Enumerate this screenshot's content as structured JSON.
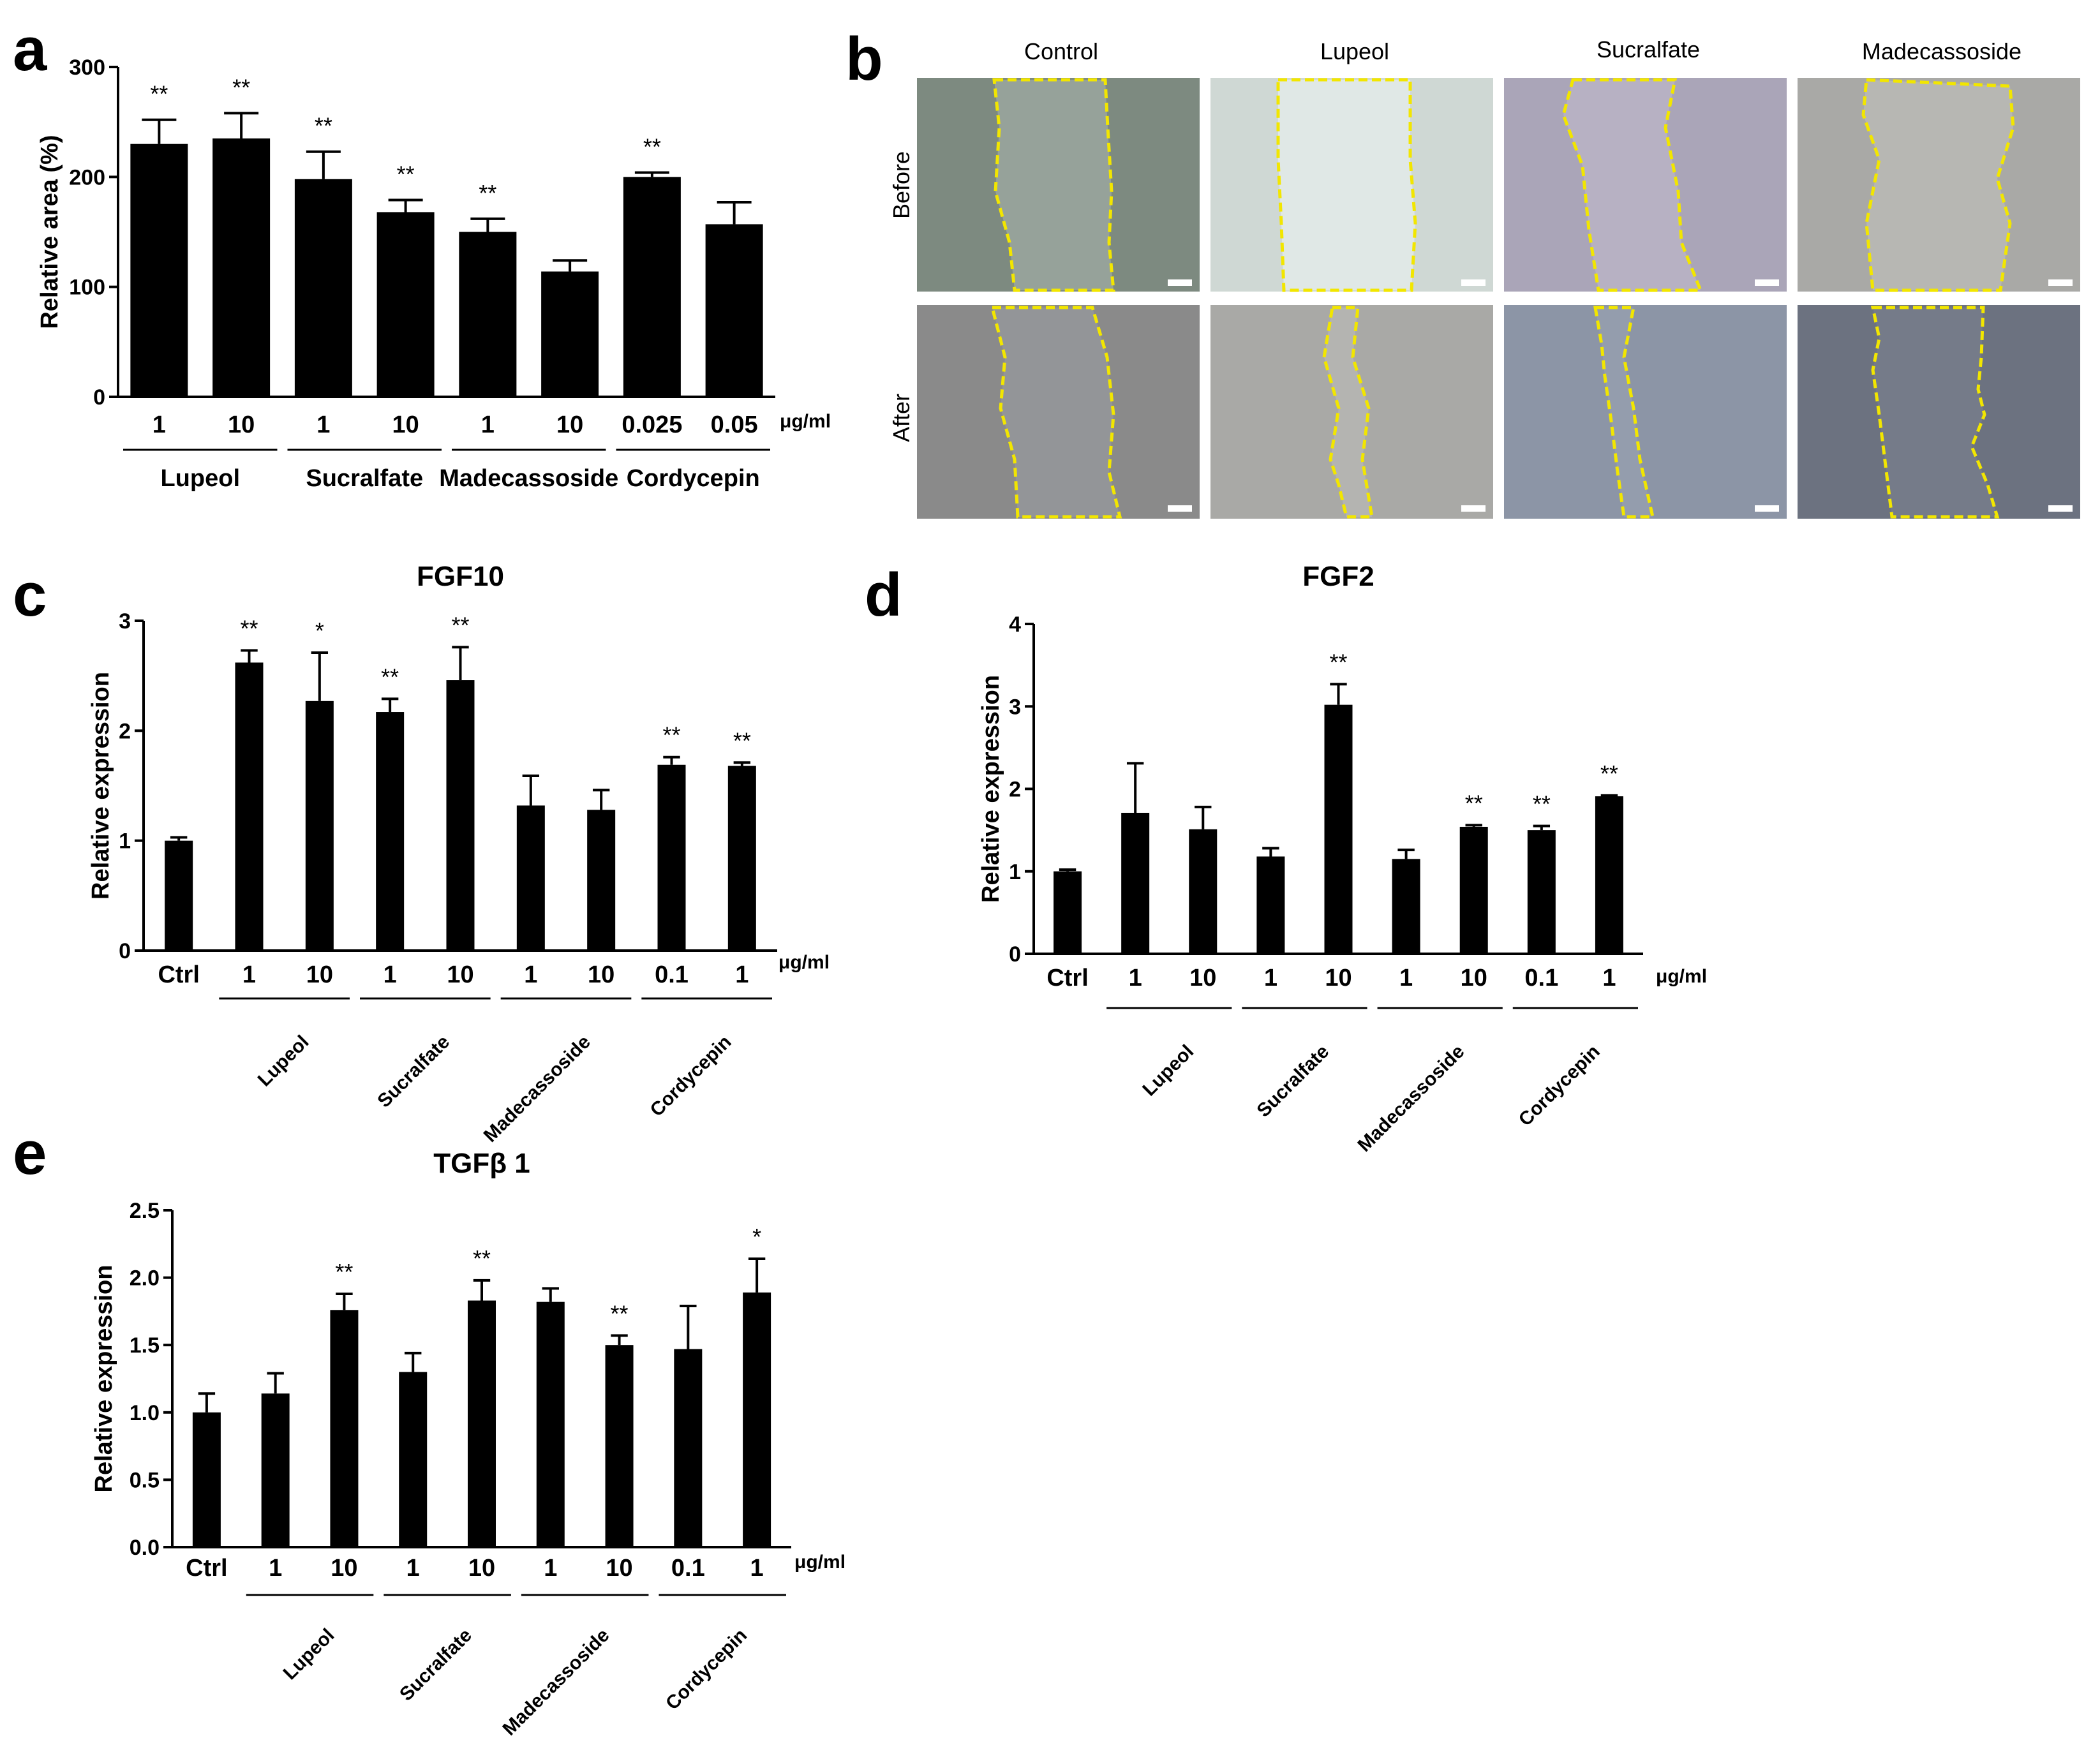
{
  "panel_labels": [
    "a",
    "b",
    "c",
    "d",
    "e"
  ],
  "unit_label": "μg/ml",
  "microscopy": {
    "columns": [
      "Control",
      "Lupeol",
      "Sucralfate",
      "Madecassoside"
    ],
    "rows": [
      "Before",
      "After"
    ],
    "tint_colors": {
      "Before": [
        "#7d8a80",
        "#cfd8d4",
        "#aaa5b8",
        "#a9a9a6"
      ],
      "After": [
        "#8a8a8a",
        "#a9a9a6",
        "#8c95a6",
        "#6c7280"
      ]
    },
    "line_color": "#f2e600"
  },
  "chart_data": [
    {
      "id": "a",
      "type": "bar",
      "title": "",
      "ylabel": "Relative area (%)",
      "ylim": [
        0,
        300
      ],
      "yticks": [
        0,
        100,
        200,
        300
      ],
      "categories": [
        "1",
        "10",
        "1",
        "10",
        "1",
        "10",
        "0.025",
        "0.05"
      ],
      "values": [
        230,
        235,
        198,
        168,
        150,
        114,
        200,
        157
      ],
      "errors": [
        22,
        23,
        25,
        11,
        12,
        10,
        4,
        20
      ],
      "significance": [
        "**",
        "**",
        "**",
        "**",
        "**",
        "",
        "**",
        ""
      ],
      "groups": [
        {
          "label": "Lupeol",
          "start": 0,
          "end": 1
        },
        {
          "label": "Sucralfate",
          "start": 2,
          "end": 3
        },
        {
          "label": "Madecassoside",
          "start": 4,
          "end": 5
        },
        {
          "label": "Cordycepin",
          "start": 6,
          "end": 7
        }
      ],
      "group_label_style": "flat"
    },
    {
      "id": "c",
      "type": "bar",
      "title": "FGF10",
      "ylabel": "Relative expression",
      "ylim": [
        0,
        3
      ],
      "yticks": [
        0,
        1,
        2,
        3
      ],
      "categories": [
        "Ctrl",
        "1",
        "10",
        "1",
        "10",
        "1",
        "10",
        "0.1",
        "1"
      ],
      "values": [
        1.0,
        2.62,
        2.27,
        2.17,
        2.46,
        1.32,
        1.28,
        1.69,
        1.68
      ],
      "errors": [
        0.03,
        0.11,
        0.44,
        0.12,
        0.3,
        0.27,
        0.18,
        0.07,
        0.03
      ],
      "significance": [
        "",
        "**",
        "*",
        "**",
        "**",
        "",
        "",
        "**",
        "**"
      ],
      "groups": [
        {
          "label": "Lupeol",
          "start": 1,
          "end": 2
        },
        {
          "label": "Sucralfate",
          "start": 3,
          "end": 4
        },
        {
          "label": "Madecassoside",
          "start": 5,
          "end": 6
        },
        {
          "label": "Cordycepin",
          "start": 7,
          "end": 8
        }
      ],
      "group_label_style": "rotated"
    },
    {
      "id": "d",
      "type": "bar",
      "title": "FGF2",
      "ylabel": "Relative expression",
      "ylim": [
        0,
        4
      ],
      "yticks": [
        0,
        1,
        2,
        3,
        4
      ],
      "categories": [
        "Ctrl",
        "1",
        "10",
        "1",
        "10",
        "1",
        "10",
        "0.1",
        "1"
      ],
      "values": [
        1.0,
        1.71,
        1.51,
        1.18,
        3.02,
        1.15,
        1.54,
        1.5,
        1.91
      ],
      "errors": [
        0.02,
        0.6,
        0.27,
        0.1,
        0.25,
        0.11,
        0.02,
        0.05,
        0.01
      ],
      "significance": [
        "",
        "",
        "",
        "",
        "**",
        "",
        "**",
        "**",
        "**"
      ],
      "groups": [
        {
          "label": "Lupeol",
          "start": 1,
          "end": 2
        },
        {
          "label": "Sucralfate",
          "start": 3,
          "end": 4
        },
        {
          "label": "Madecassoside",
          "start": 5,
          "end": 6
        },
        {
          "label": "Cordycepin",
          "start": 7,
          "end": 8
        }
      ],
      "group_label_style": "rotated"
    },
    {
      "id": "e",
      "type": "bar",
      "title": "TGFβ 1",
      "ylabel": "Relative expression",
      "ylim": [
        0,
        2.5
      ],
      "yticks": [
        "0.0",
        "0.5",
        "1.0",
        "1.5",
        "2.0",
        "2.5"
      ],
      "categories": [
        "Ctrl",
        "1",
        "10",
        "1",
        "10",
        "1",
        "10",
        "0.1",
        "1"
      ],
      "values": [
        1.0,
        1.14,
        1.76,
        1.3,
        1.83,
        1.82,
        1.5,
        1.47,
        1.89
      ],
      "errors": [
        0.14,
        0.15,
        0.12,
        0.14,
        0.15,
        0.1,
        0.07,
        0.32,
        0.25
      ],
      "significance": [
        "",
        "",
        "**",
        "",
        "**",
        "",
        "**",
        "",
        "*"
      ],
      "groups": [
        {
          "label": "Lupeol",
          "start": 1,
          "end": 2
        },
        {
          "label": "Sucralfate",
          "start": 3,
          "end": 4
        },
        {
          "label": "Madecassoside",
          "start": 5,
          "end": 6
        },
        {
          "label": "Cordycepin",
          "start": 7,
          "end": 8
        }
      ],
      "group_label_style": "rotated"
    }
  ]
}
